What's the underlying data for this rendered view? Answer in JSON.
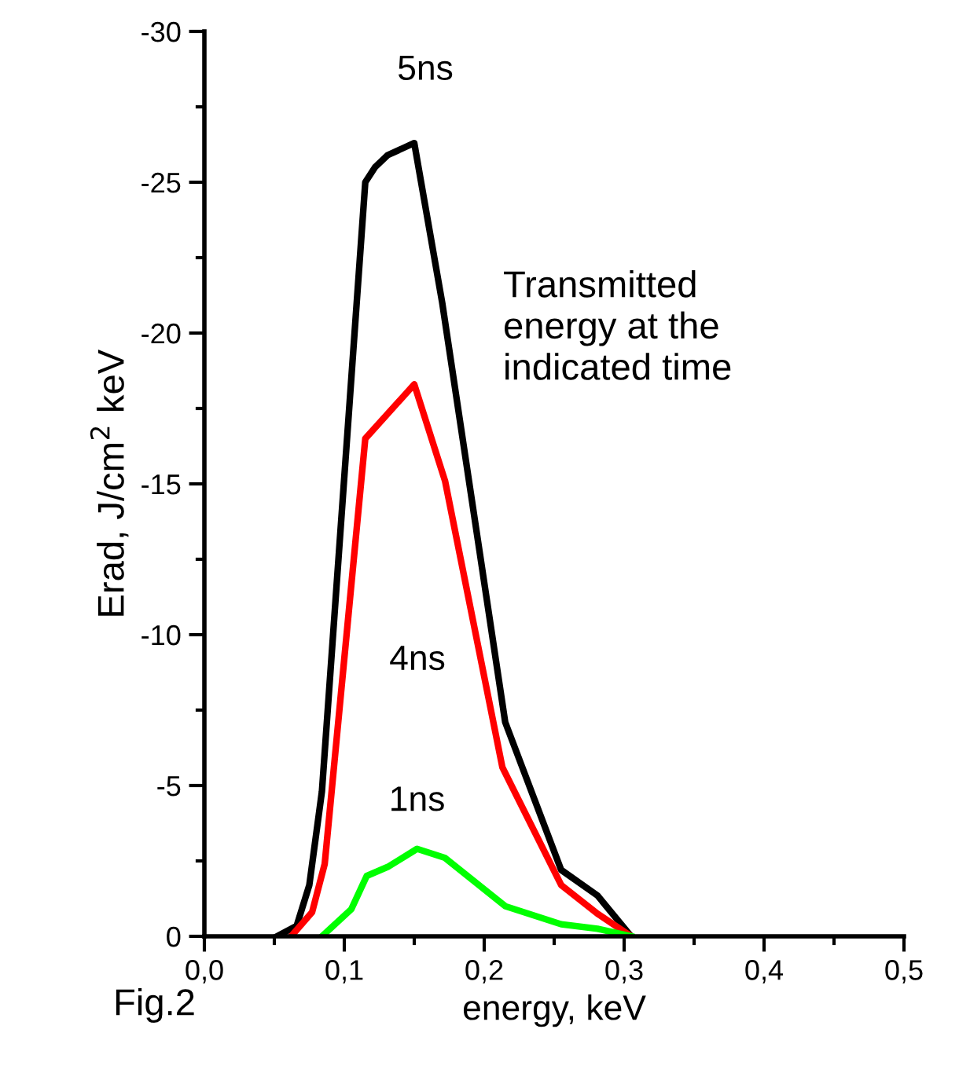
{
  "chart_data": {
    "type": "line",
    "xlabel": "energy, keV",
    "ylabel": "Erad, J/cm$^{2}$ keV",
    "annotations": [
      "Transmitted\nenergy at the\nindicated time",
      "Fig.2"
    ],
    "xlim": [
      0,
      0.5
    ],
    "ylim": [
      0,
      -30
    ],
    "xticks": [
      {
        "value": 0,
        "label": "0,0"
      },
      {
        "value": 0.1,
        "label": "0,1"
      },
      {
        "value": 0.2,
        "label": "0,2"
      },
      {
        "value": 0.3,
        "label": "0,3"
      },
      {
        "value": 0.4,
        "label": "0,4"
      },
      {
        "value": 0.5,
        "label": "0,5"
      }
    ],
    "yticks": [
      0,
      -5,
      -10,
      -15,
      -20,
      -25,
      -30
    ],
    "grid": false,
    "legend": false,
    "marker": "none",
    "line_style": "solid",
    "series": [
      {
        "name": "5ns",
        "color": "#000000",
        "x": [
          0.052,
          0.066,
          0.075,
          0.084,
          0.115,
          0.122,
          0.131,
          0.15,
          0.17,
          0.215,
          0.255,
          0.281,
          0.305
        ],
        "values": [
          0,
          -0.35,
          -1.7,
          -4.8,
          -25,
          -25.5,
          -25.9,
          -26.3,
          -21.0,
          -7.1,
          -2.2,
          -1.35,
          0
        ]
      },
      {
        "name": "4ns",
        "color": "#ff0000",
        "x": [
          0.062,
          0.077,
          0.086,
          0.115,
          0.15,
          0.172,
          0.213,
          0.255,
          0.281,
          0.305
        ],
        "values": [
          0,
          -0.8,
          -2.4,
          -16.5,
          -18.3,
          -15.1,
          -5.6,
          -1.7,
          -0.75,
          0
        ]
      },
      {
        "name": "1ns",
        "color": "#00ff00",
        "x": [
          0.084,
          0.105,
          0.116,
          0.131,
          0.152,
          0.172,
          0.215,
          0.255,
          0.281,
          0.305
        ],
        "values": [
          0,
          -0.9,
          -2.0,
          -2.3,
          -2.9,
          -2.6,
          -1.0,
          -0.4,
          -0.25,
          0
        ]
      }
    ]
  }
}
